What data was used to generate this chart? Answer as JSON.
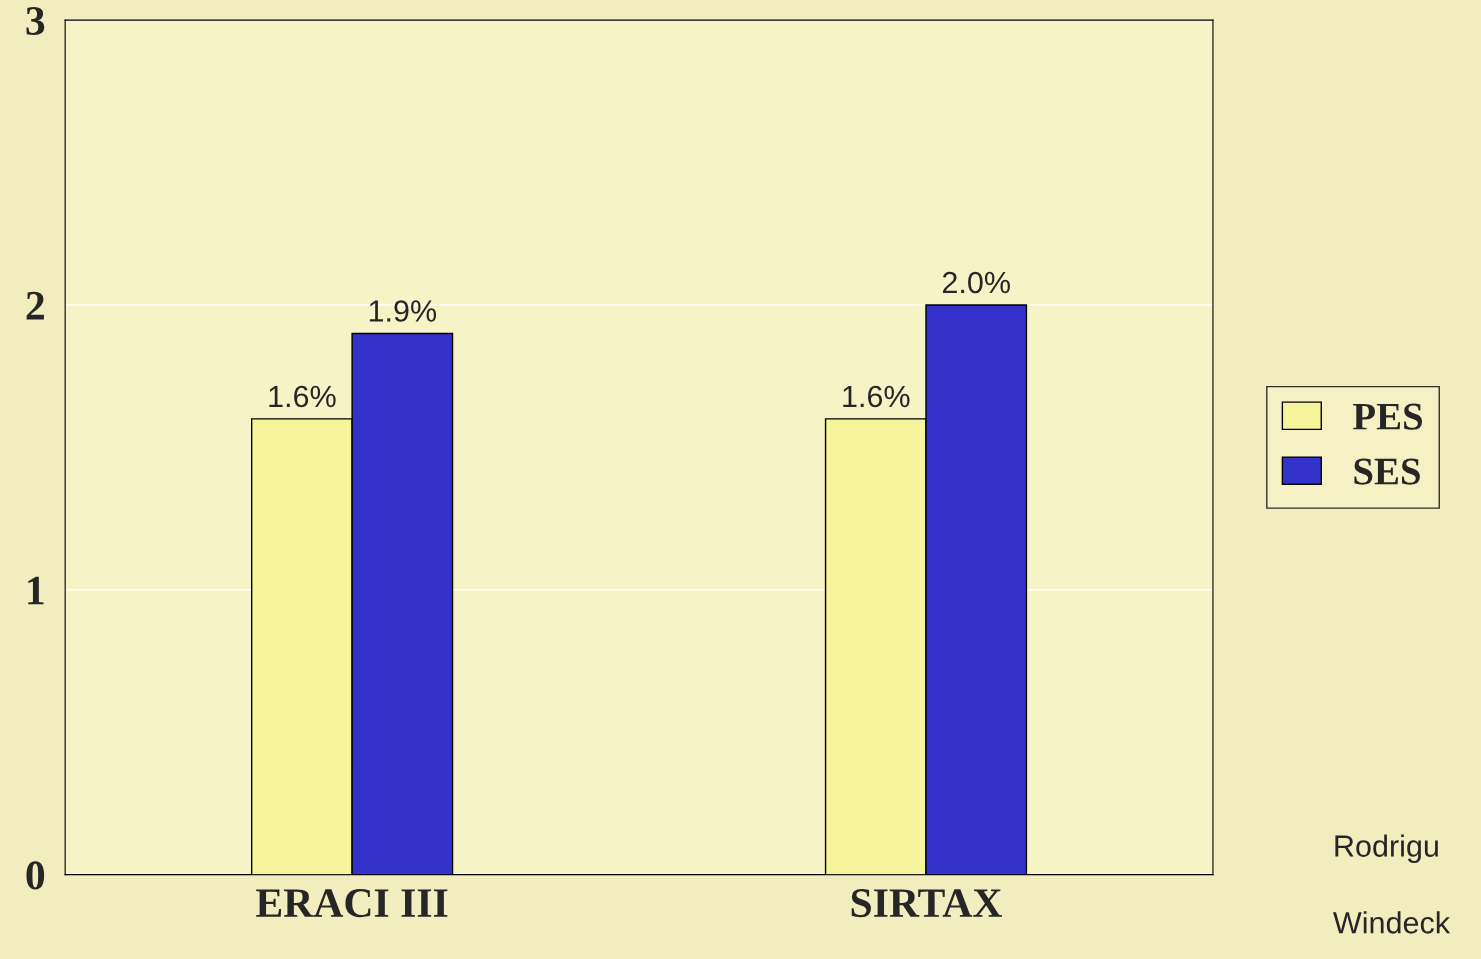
{
  "chart_data": {
    "type": "bar",
    "categories": [
      "ERACI III",
      "SIRTAX"
    ],
    "series": [
      {
        "name": "PES",
        "color": "#f7f59c",
        "values": [
          1.6,
          1.6
        ],
        "value_labels": [
          "1.6%",
          "1.6%"
        ]
      },
      {
        "name": "SES",
        "color": "#3333cc",
        "values": [
          1.9,
          2.0
        ],
        "value_labels": [
          "1.9%",
          "2.0%"
        ]
      }
    ],
    "ylim": [
      0,
      3
    ],
    "yticks": [
      0,
      1,
      2,
      3
    ],
    "grid": "y",
    "legend": "right",
    "annotations": [
      "Rodrigu",
      "Windeck"
    ]
  }
}
